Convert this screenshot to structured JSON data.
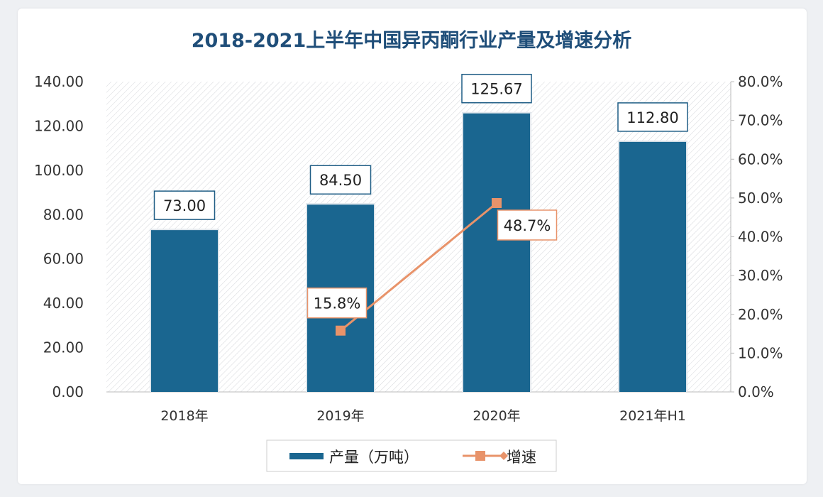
{
  "chart_data": {
    "type": "bar",
    "title": "2018-2021上半年中国异丙酮行业产量及增速分析",
    "categories": [
      "2018年",
      "2019年",
      "2020年",
      "2021年H1"
    ],
    "series": [
      {
        "name": "产量（万吨）",
        "type": "bar",
        "axis": "left",
        "values": [
          73.0,
          84.5,
          125.67,
          112.8
        ],
        "labels": [
          "73.00",
          "84.50",
          "125.67",
          "112.80"
        ],
        "color": "#1a6690"
      },
      {
        "name": "增速",
        "type": "line",
        "axis": "right",
        "values": [
          null,
          15.8,
          48.7,
          null
        ],
        "labels": [
          "",
          "15.8%",
          "48.7%",
          ""
        ],
        "color": "#e8936a"
      }
    ],
    "y_left": {
      "range": [
        0,
        140
      ],
      "ticks": [
        "0.00",
        "20.00",
        "40.00",
        "60.00",
        "80.00",
        "100.00",
        "120.00",
        "140.00"
      ]
    },
    "y_right": {
      "range": [
        0,
        80
      ],
      "ticks": [
        "0.0%",
        "10.0%",
        "20.0%",
        "30.0%",
        "40.0%",
        "50.0%",
        "60.0%",
        "70.0%",
        "80.0%"
      ]
    },
    "legend": "bottom",
    "grid": false
  }
}
